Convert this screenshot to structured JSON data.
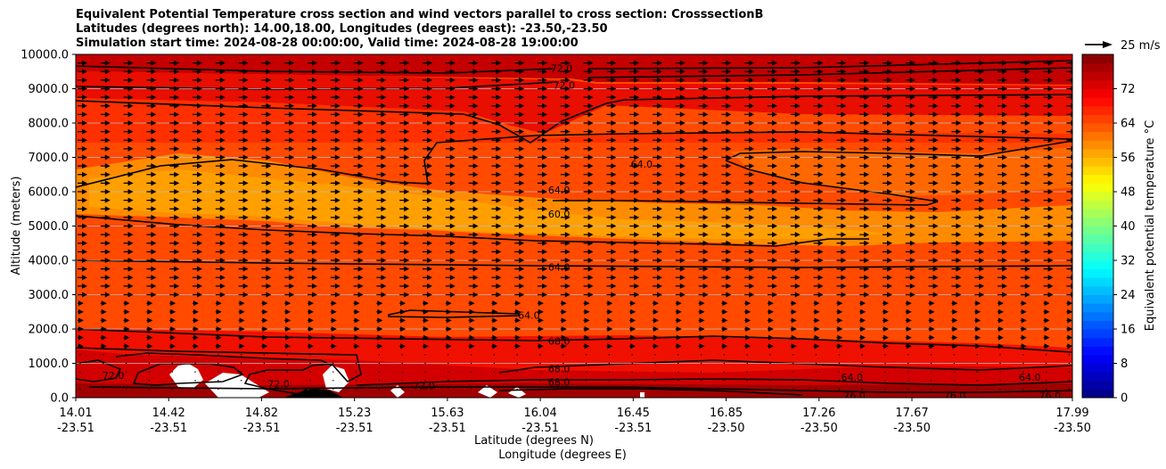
{
  "chart_data": {
    "type": "heatmap",
    "title": [
      "Equivalent Potential Temperature cross section and wind vectors parallel to cross section: CrosssectionB",
      "Latitudes (degrees north): 14.00,18.00, Longitudes (degrees east): -23.50,-23.50",
      "Simulation start time: 2024-08-28 00:00:00, Valid time: 2024-08-28 19:00:00"
    ],
    "xlabel": "Latitude (degrees N)",
    "xlabel2": "Longitude (degrees E)",
    "ylabel": "Altitude (meters)",
    "x_ticks": [
      {
        "lat": "14.01",
        "lon": "-23.51"
      },
      {
        "lat": "14.42",
        "lon": "-23.51"
      },
      {
        "lat": "14.82",
        "lon": "-23.51"
      },
      {
        "lat": "15.23",
        "lon": "-23.51"
      },
      {
        "lat": "15.63",
        "lon": "-23.51"
      },
      {
        "lat": "16.04",
        "lon": "-23.51"
      },
      {
        "lat": "16.45",
        "lon": "-23.51"
      },
      {
        "lat": "16.85",
        "lon": "-23.50"
      },
      {
        "lat": "17.26",
        "lon": "-23.50"
      },
      {
        "lat": "17.67",
        "lon": "-23.50"
      },
      {
        "lat": "17.99",
        "lon": "-23.50"
      }
    ],
    "y_ticks": [
      "0.0",
      "1000.0",
      "2000.0",
      "3000.0",
      "4000.0",
      "5000.0",
      "6000.0",
      "7000.0",
      "8000.0",
      "9000.0",
      "10000.0"
    ],
    "ylim": [
      0,
      10000
    ],
    "grid": "horizontal",
    "colorbar": {
      "label": "Equivalent potential temperature $^\\circ$C",
      "range": [
        0,
        80
      ],
      "ticks": [
        "0",
        "8",
        "16",
        "24",
        "32",
        "40",
        "48",
        "56",
        "64",
        "72"
      ],
      "colormap": "jet"
    },
    "quiver_key": "25 m/s",
    "contour_labels": [
      {
        "text": "72.0",
        "lat": 15.95,
        "alt": 9600
      },
      {
        "text": "72.0",
        "lat": 15.96,
        "alt": 9100
      },
      {
        "text": "64.0",
        "lat": 16.27,
        "alt": 6800
      },
      {
        "text": "64.0",
        "lat": 15.94,
        "alt": 6050
      },
      {
        "text": "60.0",
        "lat": 15.94,
        "alt": 5350
      },
      {
        "text": "64.0",
        "lat": 15.94,
        "alt": 3800
      },
      {
        "text": "64.0",
        "lat": 15.82,
        "alt": 2400
      },
      {
        "text": "68.0",
        "lat": 15.94,
        "alt": 1650
      },
      {
        "text": "68.0",
        "lat": 15.94,
        "alt": 850
      },
      {
        "text": "68.0",
        "lat": 15.94,
        "alt": 450
      },
      {
        "text": "72.0",
        "lat": 15.4,
        "alt": 350
      },
      {
        "text": "72.0",
        "lat": 14.16,
        "alt": 650
      },
      {
        "text": "72.0",
        "lat": 14.82,
        "alt": 400
      },
      {
        "text": "64.0",
        "lat": 17.11,
        "alt": 600
      },
      {
        "text": "76.0",
        "lat": 17.12,
        "alt": 60
      },
      {
        "text": "76.0",
        "lat": 17.52,
        "alt": 60
      },
      {
        "text": "64.0",
        "lat": 17.82,
        "alt": 600
      },
      {
        "text": "76.0",
        "lat": 17.9,
        "alt": 60
      }
    ],
    "field_summary": [
      {
        "alt_range": [
          9500,
          10000
        ],
        "value": 76
      },
      {
        "alt_range": [
          8500,
          9500
        ],
        "value": 72
      },
      {
        "alt_range": [
          7000,
          8500
        ],
        "value": 68
      },
      {
        "alt_range": [
          4500,
          7000
        ],
        "value": 60
      },
      {
        "alt_range": [
          2000,
          4500
        ],
        "value": 66
      },
      {
        "alt_range": [
          0,
          2000
        ],
        "value": 72
      }
    ]
  }
}
